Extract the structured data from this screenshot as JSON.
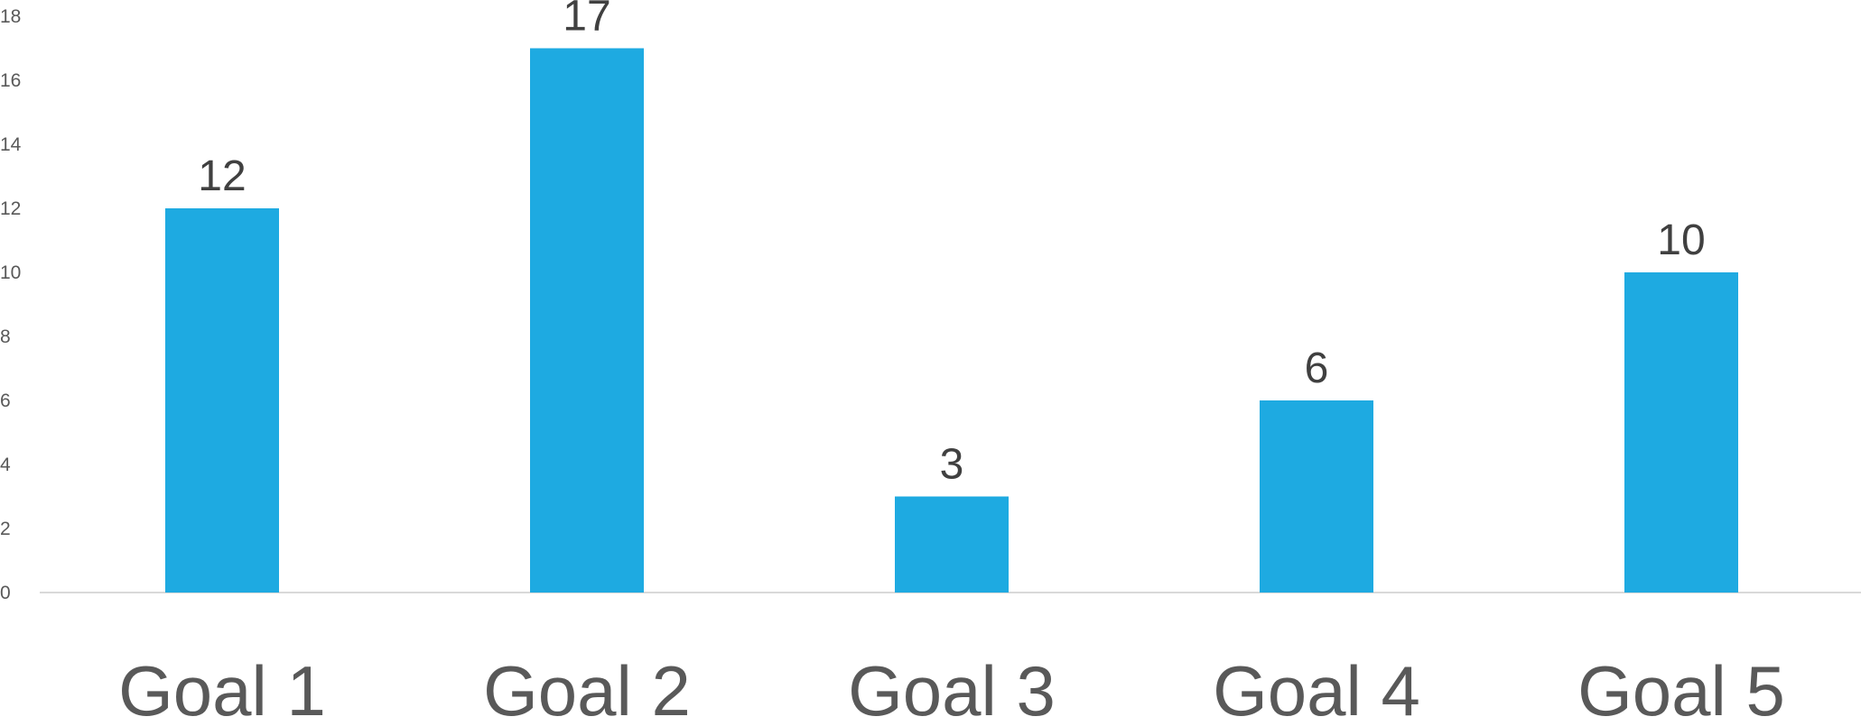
{
  "chart_data": {
    "type": "bar",
    "categories": [
      "Goal 1",
      "Goal 2",
      "Goal 3",
      "Goal 4",
      "Goal 5"
    ],
    "values": [
      12,
      17,
      3,
      6,
      10
    ],
    "title": "",
    "xlabel": "",
    "ylabel": "",
    "ylim": [
      0,
      18
    ],
    "yticks": [
      0,
      2,
      4,
      6,
      8,
      10,
      12,
      14,
      16,
      18
    ],
    "grid": false,
    "legend": "none",
    "data_labels": true,
    "colors": {
      "bar": "#1EAAE1",
      "axis_line": "#D9D9D9",
      "tick_text": "#595959",
      "data_label_text": "#404040"
    }
  }
}
